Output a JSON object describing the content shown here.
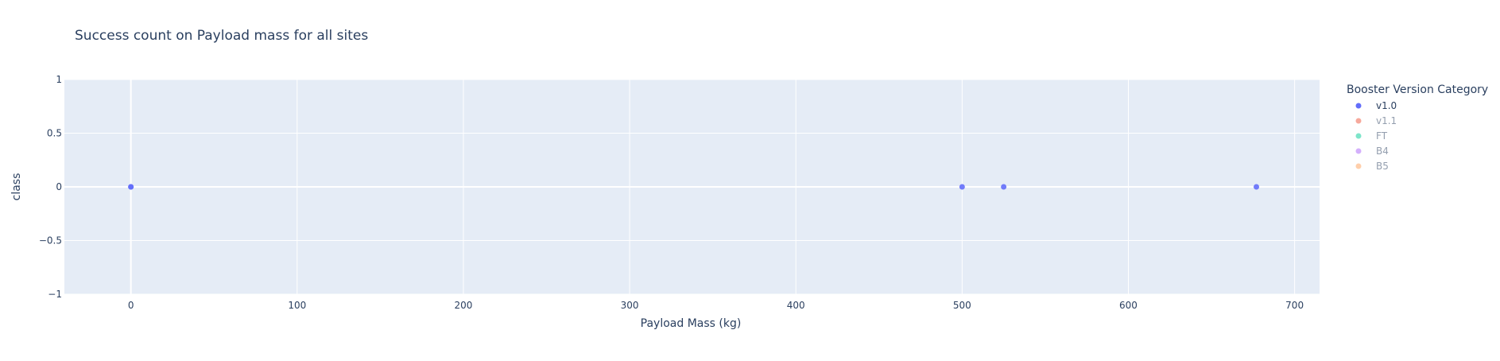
{
  "chart_data": {
    "type": "scatter",
    "title": "Success count on Payload mass for all sites",
    "xlabel": "Payload Mass (kg)",
    "ylabel": "class",
    "xlim": [
      -40,
      715
    ],
    "ylim": [
      -1,
      1
    ],
    "x_ticks": [
      0,
      100,
      200,
      300,
      400,
      500,
      600,
      700
    ],
    "y_ticks": [
      1,
      0.5,
      0,
      -0.5,
      -1
    ],
    "y_tick_labels": [
      "1",
      "0.5",
      "0",
      "−0.5",
      "−1"
    ],
    "grid": true,
    "plot_background": "#e5ecf6",
    "grid_color": "#ffffff",
    "legend_position": "right",
    "legend": {
      "title": "Booster Version Category",
      "items": [
        {
          "name": "v1.0",
          "color": "#636efa",
          "active": true
        },
        {
          "name": "v1.1",
          "color": "#ef553b",
          "active": false
        },
        {
          "name": "FT",
          "color": "#00cc96",
          "active": false
        },
        {
          "name": "B4",
          "color": "#ab63fa",
          "active": false
        },
        {
          "name": "B5",
          "color": "#ffa15a",
          "active": false
        }
      ]
    },
    "series": [
      {
        "name": "v1.0",
        "color": "#636efa",
        "points": [
          {
            "x": 0,
            "y": 0
          },
          {
            "x": 0,
            "y": 0
          },
          {
            "x": 500,
            "y": 0
          },
          {
            "x": 525,
            "y": 0
          },
          {
            "x": 677,
            "y": 0
          }
        ]
      }
    ]
  }
}
